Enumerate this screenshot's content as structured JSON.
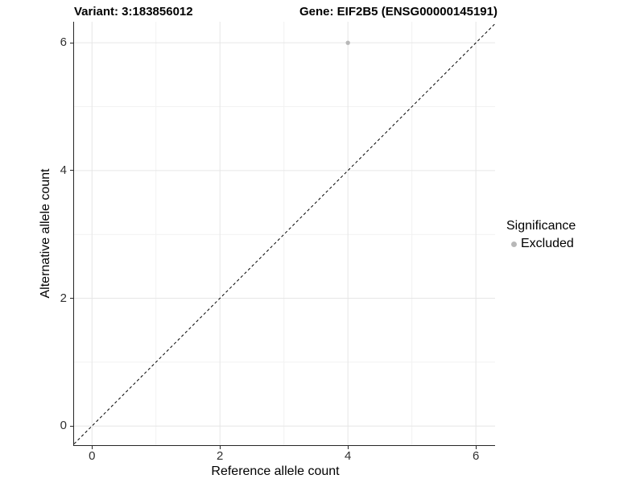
{
  "chart_data": {
    "type": "scatter",
    "title_left": "Variant: 3:183856012",
    "title_right": "Gene: EIF2B5 (ENSG00000145191)",
    "xlabel": "Reference allele count",
    "ylabel": "Alternative allele count",
    "xlim": [
      -0.28,
      6.3
    ],
    "ylim": [
      -0.3,
      6.33
    ],
    "x_major_ticks": [
      0,
      2,
      4,
      6
    ],
    "y_major_ticks": [
      0,
      2,
      4,
      6
    ],
    "x_minor_ticks": [
      1,
      3,
      5
    ],
    "y_minor_ticks": [
      1,
      3,
      5
    ],
    "grid": "major+minor",
    "reference_line": {
      "equation": "y = x",
      "style": "dashed",
      "color": "#000000"
    },
    "series": [
      {
        "name": "Excluded",
        "color": "#b8b8b8",
        "points": [
          {
            "x": 4,
            "y": 6
          }
        ]
      }
    ],
    "legend": {
      "title": "Significance",
      "position": "right",
      "entries": [
        {
          "label": "Excluded",
          "color": "#b8b8b8",
          "marker": "circle"
        }
      ]
    }
  },
  "colors": {
    "background": "#ffffff",
    "axis_line": "#262626",
    "tick_label": "#303030",
    "grid_major": "#e6e6e6",
    "grid_minor": "#f2f2f2",
    "point": "#b8b8b8",
    "reference_line": "#000000"
  }
}
